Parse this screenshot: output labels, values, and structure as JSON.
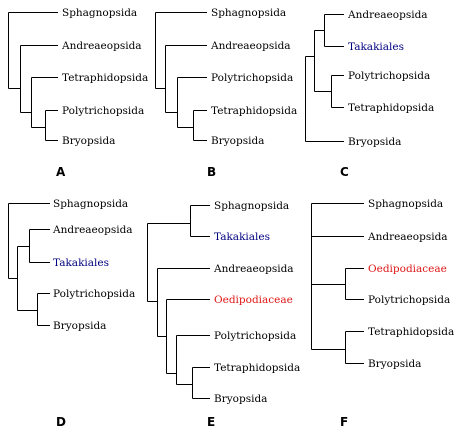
{
  "colors": {
    "normal": "#000000",
    "blue": "#000080",
    "red": "#e01818"
  },
  "panels": [
    {
      "label": "A",
      "taxa": [
        {
          "name": "Sphagnopsida",
          "color": "normal"
        },
        {
          "name": "Andreaeopsida",
          "color": "normal"
        },
        {
          "name": "Tetraphidopsida",
          "color": "normal"
        },
        {
          "name": "Polytrichopsida",
          "color": "normal"
        },
        {
          "name": "Bryopsida",
          "color": "normal"
        }
      ]
    },
    {
      "label": "B",
      "taxa": [
        {
          "name": "Sphagnopsida",
          "color": "normal"
        },
        {
          "name": "Andreaeopsida",
          "color": "normal"
        },
        {
          "name": "Polytrichopsida",
          "color": "normal"
        },
        {
          "name": "Tetraphidopsida",
          "color": "normal"
        },
        {
          "name": "Bryopsida",
          "color": "normal"
        }
      ]
    },
    {
      "label": "C",
      "taxa": [
        {
          "name": "Andreaeopsida",
          "color": "normal"
        },
        {
          "name": "Takakiales",
          "color": "blue"
        },
        {
          "name": "Polytrichopsida",
          "color": "normal"
        },
        {
          "name": "Tetraphidopsida",
          "color": "normal"
        },
        {
          "name": "Bryopsida",
          "color": "normal"
        }
      ]
    },
    {
      "label": "D",
      "taxa": [
        {
          "name": "Sphagnopsida",
          "color": "normal"
        },
        {
          "name": "Andreaeopsida",
          "color": "normal"
        },
        {
          "name": "Takakiales",
          "color": "blue"
        },
        {
          "name": "Polytrichopsida",
          "color": "normal"
        },
        {
          "name": "Bryopsida",
          "color": "normal"
        }
      ]
    },
    {
      "label": "E",
      "taxa": [
        {
          "name": "Sphagnopsida",
          "color": "normal"
        },
        {
          "name": "Takakiales",
          "color": "blue"
        },
        {
          "name": "Andreaeopsida",
          "color": "normal"
        },
        {
          "name": "Oedipodiaceae",
          "color": "red"
        },
        {
          "name": "Polytrichopsida",
          "color": "normal"
        },
        {
          "name": "Tetraphidopsida",
          "color": "normal"
        },
        {
          "name": "Bryopsida",
          "color": "normal"
        }
      ]
    },
    {
      "label": "F",
      "taxa": [
        {
          "name": "Sphagnopsida",
          "color": "normal"
        },
        {
          "name": "Andreaeopsida",
          "color": "normal"
        },
        {
          "name": "Oedipodiaceae",
          "color": "red"
        },
        {
          "name": "Polytrichopsida",
          "color": "normal"
        },
        {
          "name": "Tetraphidopsida",
          "color": "normal"
        },
        {
          "name": "Bryopsida",
          "color": "normal"
        }
      ]
    }
  ]
}
